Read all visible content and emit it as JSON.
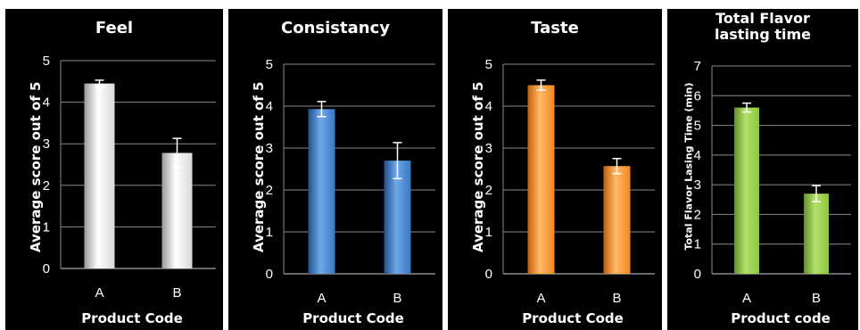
{
  "charts": {
    "chart_data": [
      {
        "type": "bar",
        "title": "Feel",
        "xlabel": "Product Code",
        "ylabel": "Average score out of 5",
        "categories": [
          "A",
          "B"
        ],
        "values": [
          4.45,
          2.78
        ],
        "errors": [
          0.08,
          0.35
        ],
        "ylim": [
          0,
          5
        ],
        "yticks": [
          0,
          1,
          2,
          3,
          4,
          5
        ],
        "grid": true,
        "colors": {
          "top": "#ffffff",
          "mid": "#d8d8d8",
          "bottom": "#9a9a9a"
        }
      },
      {
        "type": "bar",
        "title": "Consistancy",
        "xlabel": "Product Code",
        "ylabel": "Average score out of 5",
        "categories": [
          "A",
          "B"
        ],
        "values": [
          3.93,
          2.7
        ],
        "errors": [
          0.18,
          0.43
        ],
        "ylim": [
          0,
          5
        ],
        "yticks": [
          0,
          1,
          2,
          3,
          4,
          5
        ],
        "grid": true,
        "colors": {
          "top": "#6fa8e8",
          "mid": "#3a78c4",
          "bottom": "#1f4f8e"
        }
      },
      {
        "type": "bar",
        "title": "Taste",
        "xlabel": "Product Code",
        "ylabel": "Average score out of 5",
        "categories": [
          "A",
          "B"
        ],
        "values": [
          4.5,
          2.57
        ],
        "errors": [
          0.12,
          0.18
        ],
        "ylim": [
          0,
          5
        ],
        "yticks": [
          0,
          1,
          2,
          3,
          4,
          5
        ],
        "grid": true,
        "colors": {
          "top": "#ffb866",
          "mid": "#f5871f",
          "bottom": "#c35f0c"
        }
      },
      {
        "type": "bar",
        "title": "Total Flavor\nlasting time",
        "xlabel": "Product code",
        "ylabel": "Total Flavor Lasing Time (min)",
        "categories": [
          "A",
          "B"
        ],
        "values": [
          5.6,
          2.7
        ],
        "errors": [
          0.15,
          0.27
        ],
        "ylim": [
          0,
          7
        ],
        "yticks": [
          0,
          1,
          2,
          3,
          4,
          5,
          6,
          7
        ],
        "grid": true,
        "colors": {
          "top": "#b4e06a",
          "mid": "#8cc63f",
          "bottom": "#5f9225"
        }
      }
    ]
  }
}
